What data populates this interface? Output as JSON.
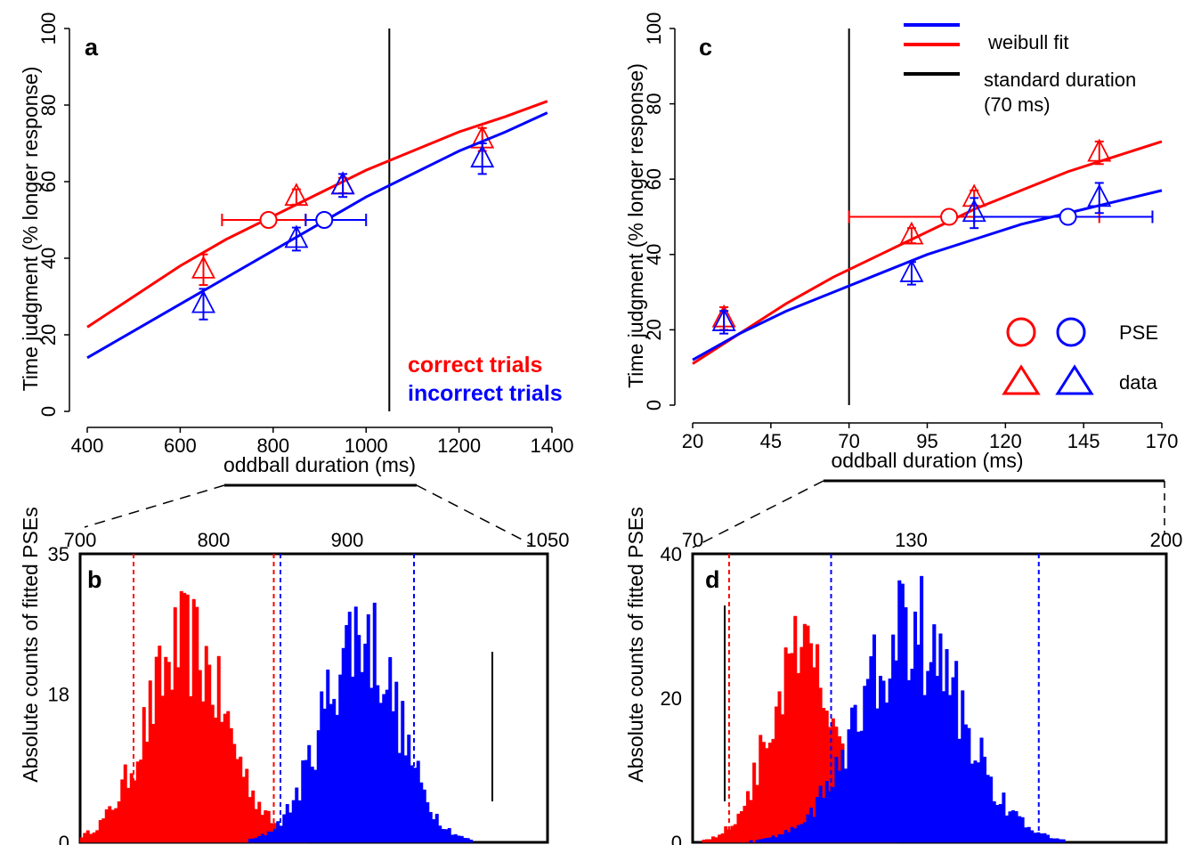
{
  "colors": {
    "correct": "#ff0000",
    "incorrect": "#0000ff",
    "standard": "#000000"
  },
  "legend": {
    "weibull_fit": "weibull fit",
    "standard_duration_line1": "standard duration",
    "standard_duration_line2": "(70 ms)",
    "pse": "PSE",
    "data": "data"
  },
  "conditions": {
    "correct": "correct trials",
    "incorrect": "incorrect trials"
  },
  "chart_data": [
    {
      "panel": "a",
      "type": "line",
      "xlabel": "oddball duration (ms)",
      "ylabel": "Time judgment (% longer response)",
      "xlim": [
        400,
        1400
      ],
      "ylim": [
        0,
        100
      ],
      "xticks": [
        "400",
        "600",
        "800",
        "1000",
        "1200",
        "1400"
      ],
      "yticks": [
        "0",
        "20",
        "40",
        "60",
        "80",
        "100"
      ],
      "standard_duration": 1050,
      "series": [
        {
          "name": "correct trials",
          "fit": {
            "x": [
              400,
              500,
              600,
              700,
              800,
              900,
              1000,
              1100,
              1200,
              1300,
              1390
            ],
            "y": [
              22,
              30,
              38,
              45,
              51,
              57,
              63,
              68,
              73,
              77,
              81
            ]
          },
          "data": [
            {
              "x": 650,
              "y": 37,
              "err": 4
            },
            {
              "x": 850,
              "y": 56,
              "err": 2
            },
            {
              "x": 950,
              "y": 59,
              "err": 2
            },
            {
              "x": 1250,
              "y": 71,
              "err": 3
            }
          ],
          "pse": {
            "x": 790,
            "y": 50,
            "xerr": [
              690,
              870
            ]
          }
        },
        {
          "name": "incorrect trials",
          "fit": {
            "x": [
              400,
              500,
              600,
              700,
              800,
              900,
              1000,
              1100,
              1200,
              1300,
              1390
            ],
            "y": [
              14,
              21,
              28,
              35,
              42,
              49,
              56,
              62,
              68,
              73,
              78
            ]
          },
          "data": [
            {
              "x": 650,
              "y": 28,
              "err": 4
            },
            {
              "x": 850,
              "y": 45,
              "err": 3
            },
            {
              "x": 950,
              "y": 59,
              "err": 3
            },
            {
              "x": 1250,
              "y": 66,
              "err": 4
            }
          ],
          "pse": {
            "x": 910,
            "y": 50,
            "xerr": [
              870,
              1000
            ]
          }
        }
      ]
    },
    {
      "panel": "b",
      "type": "bar",
      "ylabel": "Absolute counts of fitted PSEs",
      "xlim": [
        700,
        1050
      ],
      "ylim": [
        0,
        35
      ],
      "xticks": [
        "700",
        "800",
        "900",
        "1050"
      ],
      "yticks": [
        "0",
        "18",
        "35"
      ],
      "standard_duration": 1050,
      "series": [
        {
          "name": "correct trials",
          "mean": 780,
          "sd": 30,
          "peak": 31,
          "ci": [
            740,
            845
          ]
        },
        {
          "name": "incorrect trials",
          "mean": 910,
          "sd": 28,
          "peak": 33,
          "ci": [
            850,
            950
          ]
        }
      ]
    },
    {
      "panel": "c",
      "type": "line",
      "xlabel": "oddball duration (ms)",
      "ylabel": "Time judgment (% longer response)",
      "xlim": [
        20,
        170
      ],
      "ylim": [
        0,
        100
      ],
      "xticks": [
        "20",
        "45",
        "70",
        "95",
        "120",
        "145",
        "170"
      ],
      "yticks": [
        "0",
        "20",
        "40",
        "60",
        "80",
        "100"
      ],
      "standard_duration": 70,
      "series": [
        {
          "name": "correct trials",
          "fit": {
            "x": [
              20,
              35,
              50,
              65,
              80,
              95,
              110,
              125,
              140,
              155,
              170
            ],
            "y": [
              11,
              19,
              27,
              34,
              40,
              46,
              52,
              57,
              62,
              66,
              70
            ]
          },
          "data": [
            {
              "x": 30,
              "y": 23,
              "err": 3
            },
            {
              "x": 90,
              "y": 45,
              "err": 2
            },
            {
              "x": 110,
              "y": 55,
              "err": 2
            },
            {
              "x": 150,
              "y": 67,
              "err": 3
            }
          ],
          "pse": {
            "x": 102,
            "y": 50,
            "xerr": [
              70,
              150
            ]
          }
        },
        {
          "name": "incorrect trials",
          "fit": {
            "x": [
              20,
              35,
              50,
              65,
              80,
              95,
              110,
              125,
              140,
              155,
              170
            ],
            "y": [
              12,
              19,
              25,
              30,
              35,
              40,
              44,
              48,
              51,
              54,
              57
            ]
          },
          "data": [
            {
              "x": 30,
              "y": 22,
              "err": 3
            },
            {
              "x": 90,
              "y": 35,
              "err": 3
            },
            {
              "x": 110,
              "y": 51,
              "err": 4
            },
            {
              "x": 150,
              "y": 55,
              "err": 4
            }
          ],
          "pse": {
            "x": 140,
            "y": 50,
            "xerr": [
              110,
              167
            ]
          }
        }
      ]
    },
    {
      "panel": "d",
      "type": "bar",
      "ylabel": "Absolute counts of fitted PSEs",
      "xlim": [
        70,
        200
      ],
      "ylim": [
        0,
        40
      ],
      "xticks": [
        "70",
        "130",
        "200"
      ],
      "yticks": [
        "0",
        "20",
        "40"
      ],
      "standard_duration": 70,
      "series": [
        {
          "name": "correct trials",
          "mean": 100,
          "sd": 9,
          "peak": 33,
          "ci": [
            80,
            108
          ]
        },
        {
          "name": "incorrect trials",
          "mean": 130,
          "sd": 14,
          "peak": 38,
          "ci": [
            108,
            165
          ]
        }
      ]
    }
  ]
}
